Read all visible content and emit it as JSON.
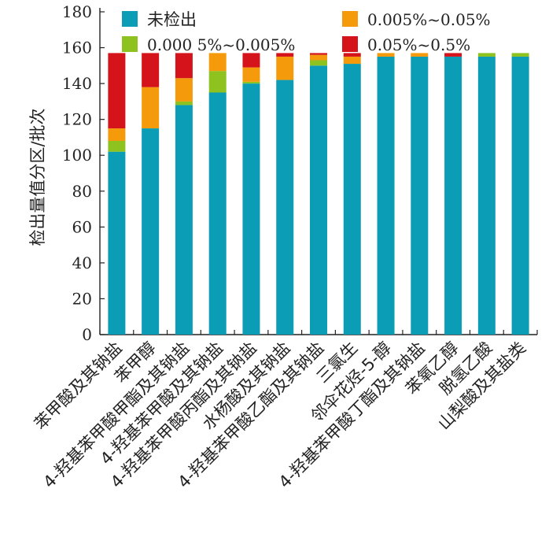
{
  "chart_data": {
    "type": "bar",
    "stacked": true,
    "ylabel": "检出量值分区/批次",
    "ylim": [
      0,
      180
    ],
    "yticks": [
      0,
      20,
      40,
      60,
      80,
      100,
      120,
      140,
      160,
      180
    ],
    "legend_position": "top",
    "categories": [
      "苯甲酸及其钠盐",
      "苯甲醇",
      "4-羟基苯甲酸甲酯及其钠盐",
      "4-羟基苯甲酸及其钠盐",
      "4-羟基苯甲酸丙酯及其钠盐",
      "水杨酸及其钠盐",
      "4-羟基苯甲酸乙酯及其钠盐",
      "三氯生",
      "邻伞花烃-5-醇",
      "4-羟基苯甲酸丁酯及其钠盐",
      "苯氧乙醇",
      "脱氢乙酸",
      "山梨酸及其盐类"
    ],
    "series": [
      {
        "name": "未检出",
        "color": "#0a9db5",
        "values": [
          102,
          115,
          128,
          135,
          140,
          142,
          150,
          151,
          155,
          155,
          155,
          155,
          155
        ]
      },
      {
        "name": "0.000 5%~0.005%",
        "color": "#8dc21f",
        "values": [
          6,
          0,
          2,
          12,
          1,
          0,
          3,
          0,
          0,
          0,
          0,
          2,
          2
        ]
      },
      {
        "name": "0.005%~0.05%",
        "color": "#f59a0a",
        "values": [
          7,
          23,
          13,
          10,
          8,
          13,
          3,
          4,
          2,
          2,
          0,
          0,
          0
        ]
      },
      {
        "name": "0.05%~0.5%",
        "color": "#d4141a",
        "values": [
          42,
          19,
          14,
          0,
          8,
          2,
          1,
          2,
          0,
          0,
          2,
          0,
          0
        ]
      }
    ]
  }
}
